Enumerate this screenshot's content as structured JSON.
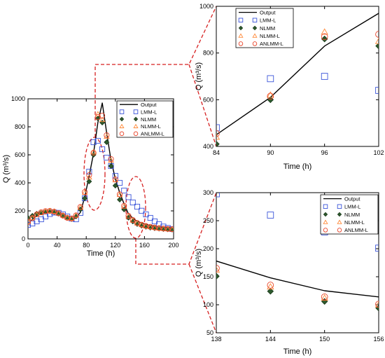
{
  "colors": {
    "output": "#000000",
    "lmm": "#3b55d9",
    "nlmm": "#1a3a1a",
    "nlmmFill": "#2e5a2e",
    "nlmml": "#ff8a3a",
    "anlmml": "#e8442a",
    "connector": "#d62020"
  },
  "legend_labels": {
    "output": "Output",
    "lmm": "LMM-L",
    "nlmm": "NLMM",
    "nlmml": "NLMM-L",
    "anlmml": "ANLMM-L"
  },
  "chart_data": [
    {
      "id": "main",
      "type": "line",
      "xlabel": "Time (h)",
      "ylabel": "Q (m³/s)",
      "xlim": [
        0,
        200
      ],
      "ylim": [
        0,
        1000
      ],
      "xticks": [
        0,
        40,
        80,
        120,
        160,
        200
      ],
      "yticks": [
        0,
        200,
        400,
        600,
        800,
        1000
      ],
      "tick_labels_x": [
        "0",
        "40",
        "80",
        "120",
        "160",
        "200"
      ],
      "tick_labels_y": [
        "0",
        "200",
        "400",
        "600",
        "800",
        "1000"
      ],
      "legend_position": "top-right",
      "series": [
        {
          "key": "output",
          "name": "Output",
          "marker": "line",
          "x": [
            0,
            6,
            12,
            18,
            24,
            30,
            36,
            42,
            48,
            54,
            60,
            66,
            72,
            78,
            84,
            90,
            96,
            102,
            108,
            114,
            120,
            126,
            132,
            138,
            144,
            150,
            156,
            162,
            168,
            174,
            180,
            186,
            192,
            198
          ],
          "y": [
            110,
            140,
            165,
            180,
            192,
            200,
            198,
            186,
            168,
            152,
            140,
            150,
            190,
            300,
            450,
            610,
            830,
            970,
            760,
            560,
            430,
            330,
            250,
            178,
            148,
            125,
            114,
            104,
            96,
            90,
            86,
            82,
            80,
            78
          ]
        },
        {
          "key": "lmm",
          "name": "LMM-L",
          "marker": "square",
          "x": [
            0,
            6,
            12,
            18,
            24,
            30,
            36,
            42,
            48,
            54,
            60,
            66,
            72,
            78,
            84,
            90,
            96,
            102,
            108,
            114,
            120,
            126,
            132,
            138,
            144,
            150,
            156,
            162,
            168,
            174,
            180,
            186,
            192,
            198
          ],
          "y": [
            100,
            110,
            125,
            140,
            160,
            178,
            188,
            186,
            175,
            160,
            145,
            140,
            185,
            290,
            480,
            690,
            700,
            640,
            580,
            520,
            450,
            400,
            345,
            298,
            260,
            230,
            201,
            175,
            150,
            125,
            105,
            88,
            78,
            70
          ]
        },
        {
          "key": "nlmm",
          "name": "NLMM",
          "marker": "diamond",
          "x": [
            0,
            6,
            12,
            18,
            24,
            30,
            36,
            42,
            48,
            54,
            60,
            66,
            72,
            78,
            84,
            90,
            96,
            102,
            108,
            114,
            120,
            126,
            132,
            138,
            144,
            150,
            156,
            162,
            168,
            174,
            180,
            186,
            192,
            198
          ],
          "y": [
            150,
            165,
            180,
            188,
            195,
            198,
            192,
            180,
            165,
            150,
            142,
            160,
            210,
            290,
            410,
            600,
            860,
            830,
            690,
            520,
            380,
            280,
            210,
            151,
            124,
            106,
            94,
            86,
            80,
            76,
            73,
            70,
            68,
            66
          ]
        },
        {
          "key": "nlmml",
          "name": "NLMM-L",
          "marker": "triangle",
          "x": [
            0,
            6,
            12,
            18,
            24,
            30,
            36,
            42,
            48,
            54,
            60,
            66,
            72,
            78,
            84,
            90,
            96,
            102,
            108,
            114,
            120,
            126,
            132,
            138,
            144,
            150,
            156,
            162,
            168,
            174,
            180,
            186,
            192,
            198
          ],
          "y": [
            125,
            150,
            172,
            186,
            196,
            200,
            196,
            184,
            168,
            152,
            146,
            168,
            225,
            330,
            440,
            620,
            890,
            850,
            730,
            560,
            420,
            315,
            232,
            162,
            132,
            112,
            100,
            91,
            85,
            80,
            76,
            73,
            70,
            68
          ]
        },
        {
          "key": "anlmml",
          "name": "ANLMM-L",
          "marker": "circle",
          "x": [
            0,
            6,
            12,
            18,
            24,
            30,
            36,
            42,
            48,
            54,
            60,
            66,
            72,
            78,
            84,
            90,
            96,
            102,
            108,
            114,
            120,
            126,
            132,
            138,
            144,
            150,
            156,
            162,
            168,
            174,
            180,
            186,
            192,
            198
          ],
          "y": [
            120,
            148,
            175,
            190,
            198,
            200,
            194,
            182,
            166,
            150,
            145,
            168,
            228,
            335,
            455,
            615,
            870,
            880,
            740,
            570,
            425,
            318,
            236,
            165,
            135,
            114,
            101,
            92,
            86,
            81,
            77,
            74,
            71,
            69
          ]
        }
      ]
    },
    {
      "id": "zoom-upper",
      "type": "line",
      "xlabel": "Time (h)",
      "ylabel": "Q (m³/s)",
      "xlim": [
        84,
        102
      ],
      "ylim": [
        400,
        1000
      ],
      "xticks": [
        84,
        90,
        96,
        102
      ],
      "yticks": [
        400,
        600,
        800,
        1000
      ],
      "tick_labels_x": [
        "84",
        "90",
        "96",
        "102"
      ],
      "tick_labels_y": [
        "400",
        "600",
        "800",
        "1000"
      ],
      "legend_position": "top-left",
      "series": [
        {
          "key": "output",
          "name": "Output",
          "marker": "line",
          "x": [
            84,
            90,
            96,
            102
          ],
          "y": [
            450,
            610,
            830,
            970
          ]
        },
        {
          "key": "lmm",
          "name": "LMM-L",
          "marker": "square",
          "x": [
            84,
            90,
            96,
            102
          ],
          "y": [
            480,
            690,
            700,
            640
          ]
        },
        {
          "key": "nlmm",
          "name": "NLMM",
          "marker": "diamond",
          "x": [
            84,
            90,
            96,
            102
          ],
          "y": [
            410,
            600,
            860,
            830
          ]
        },
        {
          "key": "nlmml",
          "name": "NLMM-L",
          "marker": "triangle",
          "x": [
            84,
            90,
            96,
            102
          ],
          "y": [
            440,
            620,
            890,
            850
          ]
        },
        {
          "key": "anlmml",
          "name": "ANLMM-L",
          "marker": "circle",
          "x": [
            84,
            90,
            96,
            102
          ],
          "y": [
            455,
            615,
            870,
            880
          ]
        }
      ]
    },
    {
      "id": "zoom-lower",
      "type": "line",
      "xlabel": "Time (h)",
      "ylabel": "Q (m³/s)",
      "xlim": [
        138,
        156
      ],
      "ylim": [
        50,
        300
      ],
      "xticks": [
        138,
        144,
        150,
        156
      ],
      "yticks": [
        50,
        100,
        150,
        200,
        250,
        300
      ],
      "tick_labels_x": [
        "138",
        "144",
        "150",
        "156"
      ],
      "tick_labels_y": [
        "50",
        "100",
        "150",
        "200",
        "250",
        "300"
      ],
      "legend_position": "top-right",
      "series": [
        {
          "key": "output",
          "name": "Output",
          "marker": "line",
          "x": [
            138,
            144,
            150,
            156
          ],
          "y": [
            178,
            148,
            125,
            114
          ]
        },
        {
          "key": "lmm",
          "name": "LMM-L",
          "marker": "square",
          "x": [
            138,
            144,
            150,
            156
          ],
          "y": [
            298,
            260,
            230,
            201
          ]
        },
        {
          "key": "nlmm",
          "name": "NLMM",
          "marker": "diamond",
          "x": [
            138,
            144,
            150,
            156
          ],
          "y": [
            151,
            124,
            106,
            94
          ]
        },
        {
          "key": "nlmml",
          "name": "NLMM-L",
          "marker": "triangle",
          "x": [
            138,
            144,
            150,
            156
          ],
          "y": [
            162,
            132,
            112,
            100
          ]
        },
        {
          "key": "anlmml",
          "name": "ANLMM-L",
          "marker": "circle",
          "x": [
            138,
            144,
            150,
            156
          ],
          "y": [
            165,
            135,
            114,
            101
          ]
        }
      ]
    }
  ]
}
